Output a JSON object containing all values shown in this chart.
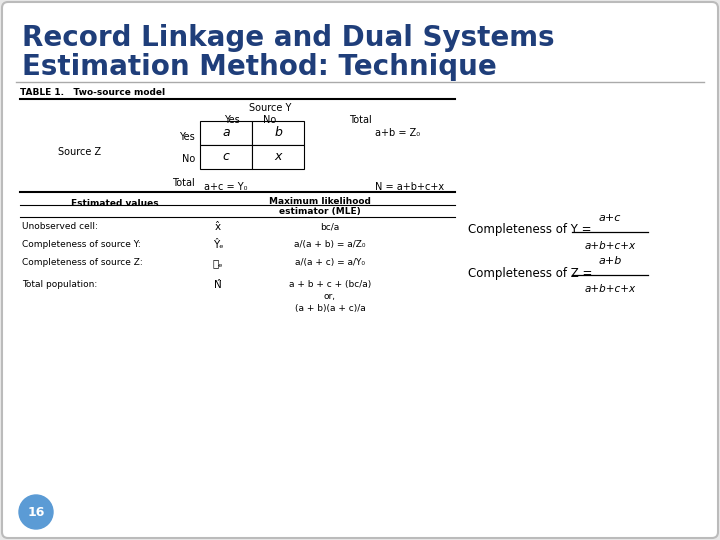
{
  "title_line1": "Record Linkage and Dual Systems",
  "title_line2": "Estimation Method: Technique",
  "title_color": "#1F3E7A",
  "bg_color": "#FFFFFF",
  "slide_bg": "#E8E8E8",
  "border_color": "#BBBBBB",
  "page_number": "16",
  "page_circle_color": "#5B9BD5",
  "table1_title": "TABLE 1.   Two-source model",
  "table_header_source_y": "Source Y",
  "table_col_yes": "Yes",
  "table_col_no": "No",
  "table_col_total": "Total",
  "table_row_source_z": "Source Z",
  "table_row_yes": "Yes",
  "table_row_no": "No",
  "table_row_total": "Total",
  "cell_a": "a",
  "cell_b": "b",
  "cell_c": "c",
  "cell_x": "x",
  "total_row1": "a+b = Z₀",
  "total_col1": "a+c = Y₀",
  "total_N": "N = a+b+c+x",
  "est_col1": "Estimated values",
  "est_col2": "Maximum likelihood\nestimator (MLE)",
  "row1_label": "Unobserved cell:",
  "row1_hat": "x̂",
  "row1_mle": "bc/a",
  "row2_label": "Completeness of source Y:",
  "row2_hat": "Ŷₑ",
  "row2_mle": "a/(a + b) = a/Z₀",
  "row3_label": "Completeness of source Z:",
  "row3_hat": "ៜₑ",
  "row3_mle": "a/(a + c) = a/Y₀",
  "row4_label": "Total population:",
  "row4_hat": "N̂",
  "row4_mle_line1": "a + b + c + (bc/a)",
  "row4_mle_line2": "or,",
  "row4_mle_line3": "(a + b)(a + c)/a",
  "completeness_Y_text": "Completeness of Y =",
  "completeness_Y_num": "a+c",
  "completeness_Y_den": "a+b+c+x",
  "completeness_Z_text": "Completeness of Z =",
  "completeness_Z_num": "a+b",
  "completeness_Z_den": "a+b+c+x"
}
